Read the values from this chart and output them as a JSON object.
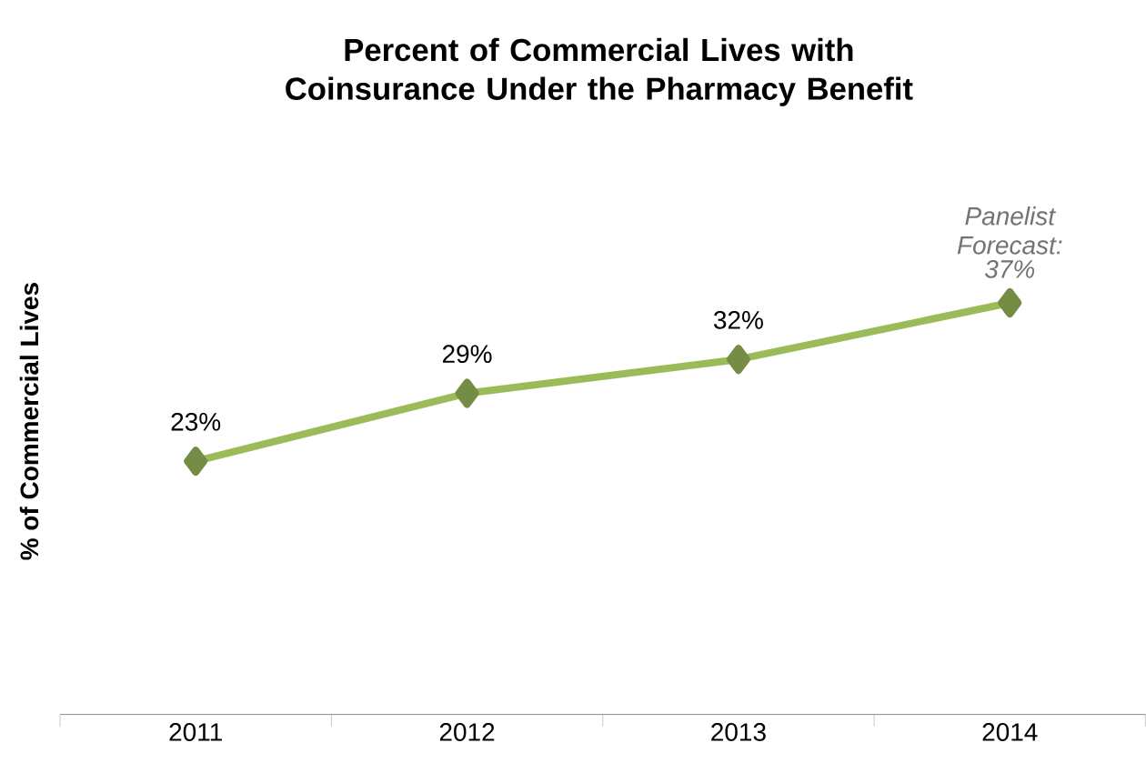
{
  "chart_data": {
    "type": "line",
    "title": "Percent of Commercial Lives with Coinsurance Under the Pharmacy Benefit",
    "ylabel": "% of Commercial Lives",
    "categories": [
      "2011",
      "2012",
      "2013",
      "2014"
    ],
    "series": [
      {
        "color": "#9bbb59",
        "values": [
          23,
          29,
          32,
          37
        ],
        "value_labels": [
          "23%",
          "29%",
          "32%",
          "37%"
        ]
      }
    ],
    "annotations": [
      {
        "text": "Panelist Forecast:",
        "x": "2014",
        "y": 37
      }
    ],
    "marker": "diamond",
    "line_style": "solid",
    "tick_labels": "x"
  }
}
